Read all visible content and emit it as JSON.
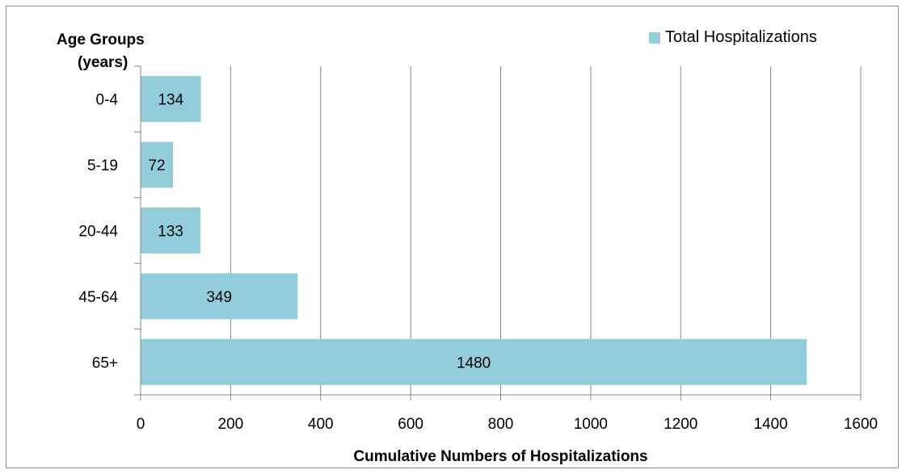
{
  "chart_data": {
    "type": "bar",
    "orientation": "horizontal",
    "title": "Age Groups (years)",
    "title_lines": [
      "Age Groups",
      "(years)"
    ],
    "categories": [
      "0-4",
      "5-19",
      "20-44",
      "45-64",
      "65+"
    ],
    "series": [
      {
        "name": "Total Hospitalizations",
        "values": [
          134,
          72,
          133,
          349,
          1480
        ],
        "color": "#92cddc"
      }
    ],
    "xlabel": "Cumulative Numbers of Hospitalizations",
    "ylabel": "",
    "xlim": [
      0,
      1600
    ],
    "xticks": [
      0,
      200,
      400,
      600,
      800,
      1000,
      1200,
      1400,
      1600
    ],
    "xtick_labels": [
      "0",
      "200",
      "400",
      "600",
      "800",
      "1000",
      "1200",
      "1400",
      "1600"
    ],
    "grid": "vertical",
    "legend_position": "top-right"
  }
}
